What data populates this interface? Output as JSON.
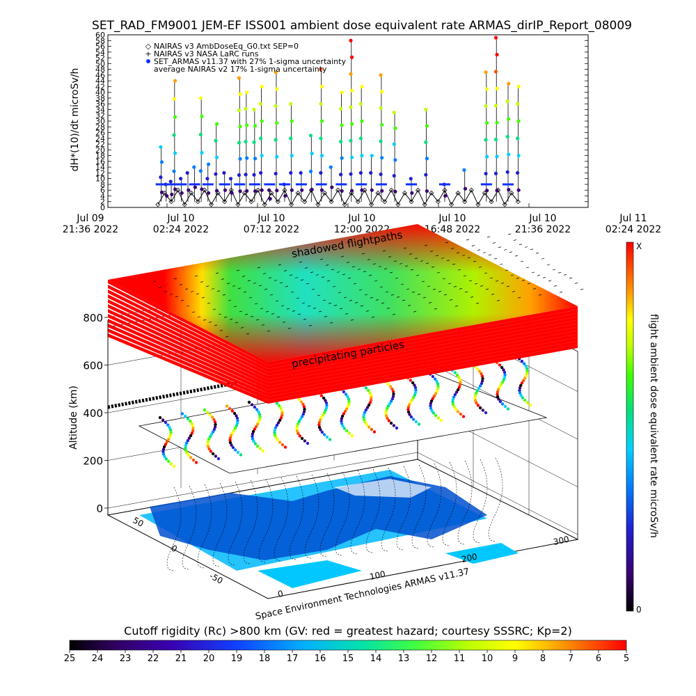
{
  "chart_data": [
    {
      "type": "line",
      "title": "SET_RAD_FM9001   JEM-EF ISS001 ambient dose equivalent rate ARMAS_dirIP_Report_08009",
      "ylabel": "dH*(10)/dt microSv/h",
      "ylim": [
        0,
        60
      ],
      "y_ticks": [
        "0",
        "2",
        "4",
        "6",
        "8",
        "10",
        "12",
        "14",
        "16",
        "18",
        "20",
        "22",
        "24",
        "26",
        "28",
        "30",
        "32",
        "34",
        "36",
        "38",
        "40",
        "42",
        "44",
        "46",
        "48",
        "50",
        "52",
        "54",
        "56",
        "58",
        "60"
      ],
      "x_ticks": [
        {
          "top": "Jul 09",
          "bottom": "21:36 2022"
        },
        {
          "top": "Jul 10",
          "bottom": "02:24 2022"
        },
        {
          "top": "Jul 10",
          "bottom": "07:12 2022"
        },
        {
          "top": "Jul 10",
          "bottom": "12:00 2022"
        },
        {
          "top": "Jul 10",
          "bottom": "16:48 2022"
        },
        {
          "top": "Jul 10",
          "bottom": "21:36 2022"
        },
        {
          "top": "Jul 11",
          "bottom": "02:24 2022"
        }
      ],
      "legend": [
        {
          "marker": "◇",
          "label": "NAIRAS v3 AmbDoseEq_G0.txt SEP=0"
        },
        {
          "marker": "+",
          "label": "NAIRAS v3 NASA LaRC runs"
        },
        {
          "marker": "●",
          "label": "SET_ARMAS v11.37 with 27% 1-sigma uncertainty"
        },
        {
          "marker": "",
          "label": "average NAIRAS v2 17% 1-sigma uncertainty"
        }
      ],
      "legend_placement": "top-left",
      "series": [
        {
          "name": "SET_ARMAS v11.37 with 27% 1-sigma uncertainty",
          "x_hours": [
            3.2,
            3.5,
            3.8,
            4.0,
            4.4,
            4.8,
            5.2,
            5.6,
            6.0,
            6.5,
            7.0,
            7.4,
            7.9,
            8.3,
            8.8,
            9.2,
            9.7,
            10.1,
            10.6,
            11.0,
            11.6,
            12.2,
            12.8,
            13.4,
            14.0,
            14.6,
            15.2,
            15.8,
            16.4,
            17.2,
            18.2,
            19.1,
            20.2,
            21.4,
            22.7,
            23.3,
            24.0,
            24.6
          ],
          "values": [
            21,
            8,
            9,
            44,
            10,
            12,
            14,
            38,
            15,
            29,
            12,
            10,
            45,
            40,
            34,
            42,
            6,
            47,
            8,
            36,
            12,
            25,
            48,
            14,
            40,
            58,
            42,
            18,
            46,
            33,
            10,
            34,
            8,
            13,
            47,
            59,
            43,
            42
          ]
        },
        {
          "name": "NAIRAS v3 AmbDoseEq_G0.txt SEP=0",
          "x_hours": [
            3.0,
            3.4,
            3.8,
            4.2,
            4.6,
            5.0,
            5.4,
            5.8,
            6.2,
            6.6,
            7.0,
            7.4,
            7.8,
            8.2,
            8.6,
            9.0,
            9.4,
            9.8,
            10.2,
            10.6,
            11.0,
            11.4,
            11.8,
            12.2,
            12.6,
            13.0,
            13.4,
            13.8,
            14.2,
            14.6,
            15.0,
            15.4,
            15.8,
            16.2,
            16.6,
            17.0,
            17.4,
            17.8,
            18.2,
            18.6,
            19.0,
            19.4,
            19.8,
            20.2,
            20.6,
            21.0,
            21.4,
            21.8,
            22.2,
            22.6,
            23.0,
            23.4,
            23.8,
            24.2,
            24.6
          ],
          "values": [
            1,
            5,
            2,
            6,
            1,
            5,
            2,
            6,
            1,
            5,
            2,
            6,
            1,
            5,
            2,
            6,
            1,
            5,
            2,
            6,
            1,
            5,
            2,
            6,
            1,
            5,
            2,
            6,
            1,
            5,
            2,
            6,
            1,
            5,
            2,
            6,
            1,
            5,
            2,
            6,
            1,
            5,
            2,
            6,
            1,
            5,
            2,
            6,
            1,
            5,
            2,
            6,
            1,
            5,
            2
          ]
        }
      ]
    },
    {
      "type": "scatter",
      "subtitle": "Space Environment Technologies ARMAS v11.37",
      "zlabel": "Altitude (km)",
      "z_ticks": [
        "0",
        "200",
        "400",
        "600",
        "800"
      ],
      "x_ticks": [
        "0",
        "100",
        "200",
        "300"
      ],
      "y_ticks": [
        "-50",
        "0",
        "50"
      ],
      "annotations": [
        "shadowed flightpaths",
        "precipitating particles"
      ],
      "colorbar": {
        "label": "flight ambient dose equivalent rate microSv/h",
        "max_label": "X",
        "min_label": "0",
        "placement": "right"
      }
    },
    {
      "type": "heatmap",
      "title": "Cutoff rigidity (Rc) >800 km (GV: red = greatest hazard; courtesy SSSRC; Kp=2)",
      "ticks": [
        "25",
        "24",
        "23",
        "22",
        "21",
        "20",
        "19",
        "18",
        "17",
        "16",
        "15",
        "14",
        "13",
        "12",
        "11",
        "10",
        "9",
        "8",
        "7",
        "6",
        "5"
      ],
      "range": [
        25,
        5
      ],
      "placement": "bottom"
    }
  ],
  "colors": {
    "scale": [
      "#000000",
      "#3a0070",
      "#2020d0",
      "#0080ff",
      "#00d0ff",
      "#00e080",
      "#40ff00",
      "#c0ff00",
      "#ffff00",
      "#ffa000",
      "#ff5000",
      "#ff0000"
    ],
    "ocean": "#00b8ff",
    "land": "#0050d0"
  }
}
